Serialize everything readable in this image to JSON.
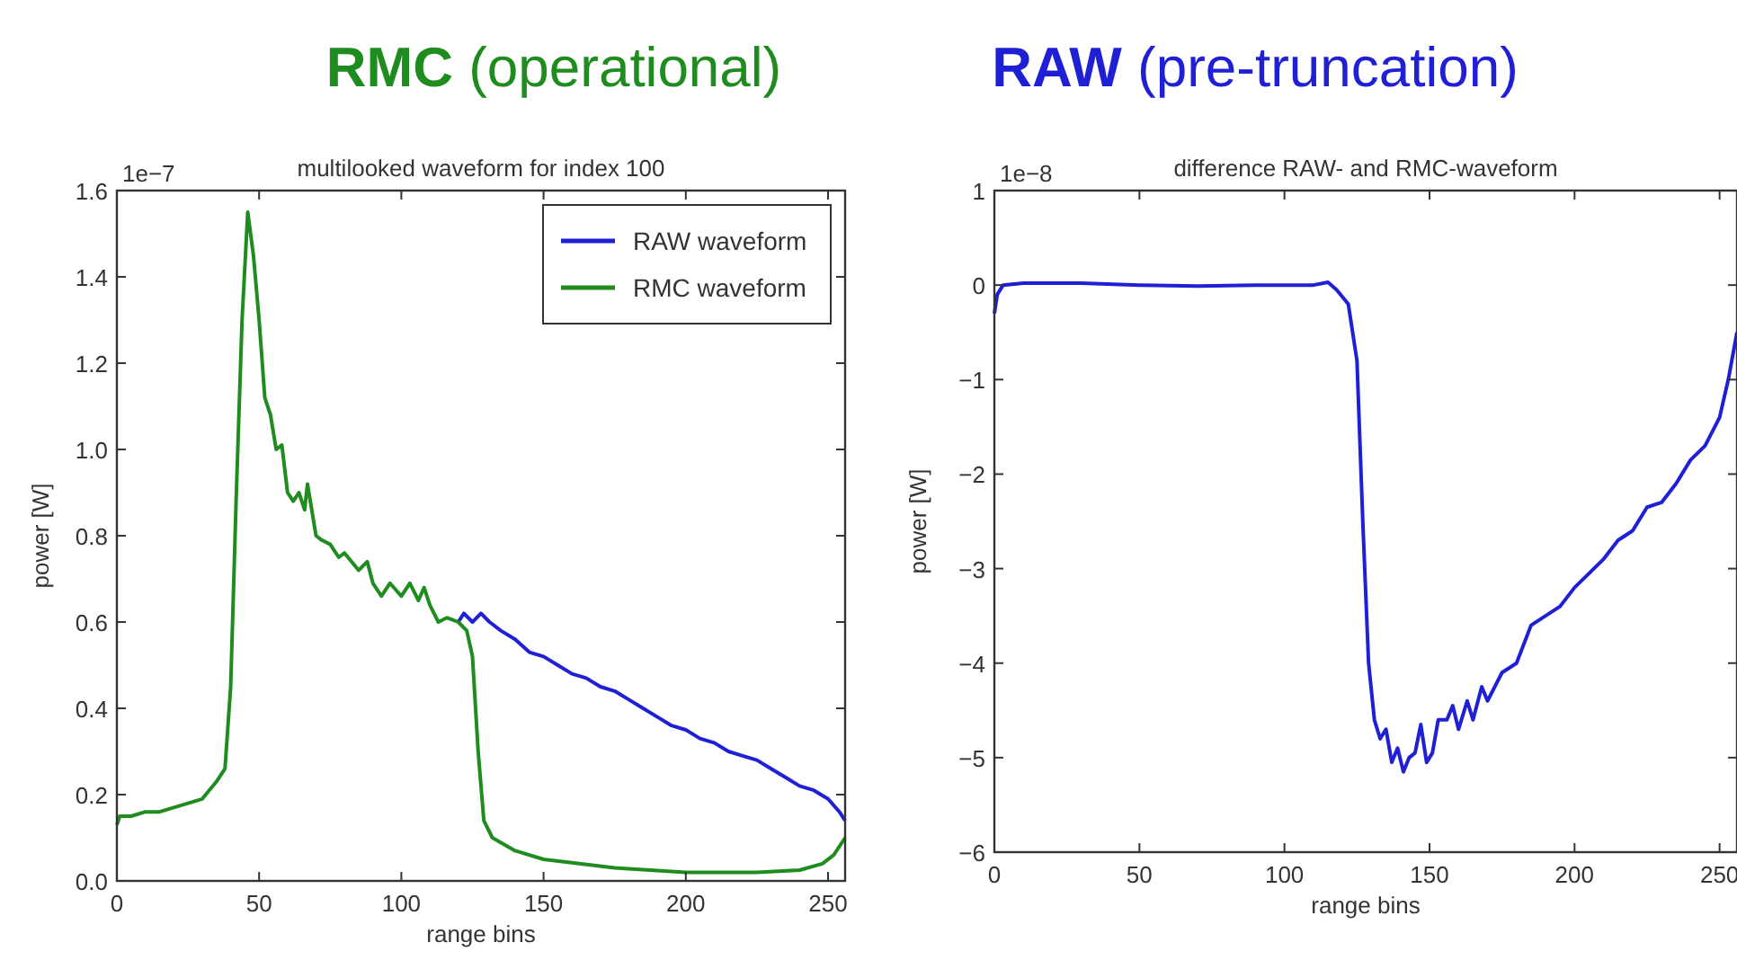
{
  "chart_data": [
    {
      "type": "line",
      "title": "multilooked waveform for index 100",
      "xlabel": "range bins",
      "ylabel": "power [W]",
      "annotations": [
        "RMC (operational)",
        "1e−7"
      ],
      "xlim": [
        0,
        256
      ],
      "xticks": [
        0,
        50,
        100,
        150,
        200,
        250
      ],
      "ylim": [
        0,
        1.6
      ],
      "yticks": [
        {
          "value": 0,
          "label": "0.0"
        },
        {
          "value": 0.2,
          "label": "0.2"
        },
        {
          "value": 0.4,
          "label": "0.4"
        },
        {
          "value": 0.6,
          "label": "0.6"
        },
        {
          "value": 0.8,
          "label": "0.8"
        },
        {
          "value": 1.0,
          "label": "1.0"
        },
        {
          "value": 1.2,
          "label": "1.2"
        },
        {
          "value": 1.4,
          "label": "1.4"
        },
        {
          "value": 1.6,
          "label": "1.6"
        }
      ],
      "legend": "top right",
      "series": [
        {
          "name": "RAW waveform",
          "color": "#1f1fd6",
          "x": [
            120,
            122,
            125,
            128,
            131,
            135,
            140,
            145,
            150,
            155,
            160,
            165,
            170,
            175,
            180,
            185,
            190,
            195,
            200,
            205,
            210,
            215,
            220,
            225,
            230,
            235,
            240,
            245,
            250,
            254,
            256
          ],
          "values": [
            0.6,
            0.62,
            0.6,
            0.62,
            0.6,
            0.58,
            0.56,
            0.53,
            0.52,
            0.5,
            0.48,
            0.47,
            0.45,
            0.44,
            0.42,
            0.4,
            0.38,
            0.36,
            0.35,
            0.33,
            0.32,
            0.3,
            0.29,
            0.28,
            0.26,
            0.24,
            0.22,
            0.21,
            0.19,
            0.16,
            0.14
          ]
        },
        {
          "name": "RMC waveform",
          "color": "#1e8c1e",
          "x": [
            0,
            1,
            5,
            10,
            15,
            20,
            25,
            30,
            35,
            38,
            40,
            42,
            44,
            46,
            48,
            50,
            52,
            54,
            56,
            58,
            60,
            62,
            64,
            66,
            67,
            70,
            72,
            75,
            78,
            80,
            85,
            88,
            90,
            93,
            96,
            100,
            103,
            106,
            108,
            110,
            113,
            116,
            120,
            123,
            125,
            127,
            129,
            132,
            140,
            150,
            175,
            200,
            225,
            240,
            248,
            252,
            256
          ],
          "values": [
            0.13,
            0.15,
            0.15,
            0.16,
            0.16,
            0.17,
            0.18,
            0.19,
            0.23,
            0.26,
            0.45,
            0.9,
            1.3,
            1.55,
            1.45,
            1.3,
            1.12,
            1.08,
            1.0,
            1.01,
            0.9,
            0.88,
            0.9,
            0.86,
            0.92,
            0.8,
            0.79,
            0.78,
            0.75,
            0.76,
            0.72,
            0.74,
            0.69,
            0.66,
            0.69,
            0.66,
            0.69,
            0.65,
            0.68,
            0.64,
            0.6,
            0.61,
            0.6,
            0.58,
            0.52,
            0.3,
            0.14,
            0.1,
            0.07,
            0.05,
            0.03,
            0.02,
            0.02,
            0.025,
            0.04,
            0.06,
            0.1
          ]
        }
      ]
    },
    {
      "type": "line",
      "title": "difference RAW- and RMC-waveform",
      "xlabel": "range bins",
      "ylabel": "power [W]",
      "annotations": [
        "RAW (pre-truncation)",
        "1e−8"
      ],
      "xlim": [
        0,
        256
      ],
      "xticks": [
        0,
        50,
        100,
        150,
        200,
        250
      ],
      "ylim": [
        -6,
        1
      ],
      "yticks": [
        {
          "value": -6,
          "label": "−6"
        },
        {
          "value": -5,
          "label": "−5"
        },
        {
          "value": -4,
          "label": "−4"
        },
        {
          "value": -3,
          "label": "−3"
        },
        {
          "value": -2,
          "label": "−2"
        },
        {
          "value": -1,
          "label": "−1"
        },
        0,
        1
      ],
      "series": [
        {
          "color": "#1f1fd6",
          "x": [
            0,
            1,
            3,
            10,
            30,
            50,
            70,
            90,
            110,
            115,
            118,
            122,
            125,
            127,
            129,
            131,
            133,
            135,
            137,
            139,
            141,
            143,
            145,
            147,
            149,
            151,
            153,
            156,
            158,
            160,
            163,
            165,
            168,
            170,
            175,
            180,
            185,
            190,
            195,
            200,
            205,
            210,
            215,
            220,
            225,
            230,
            235,
            240,
            245,
            250,
            253,
            256
          ],
          "values": [
            -0.3,
            -0.1,
            0,
            0.02,
            0.02,
            0,
            -0.01,
            0,
            0,
            0.03,
            -0.05,
            -0.2,
            -0.8,
            -2.5,
            -4,
            -4.6,
            -4.8,
            -4.7,
            -5.05,
            -4.9,
            -5.15,
            -5.0,
            -4.95,
            -4.65,
            -5.05,
            -4.95,
            -4.6,
            -4.6,
            -4.45,
            -4.7,
            -4.4,
            -4.6,
            -4.25,
            -4.4,
            -4.1,
            -4.0,
            -3.6,
            -3.5,
            -3.4,
            -3.2,
            -3.05,
            -2.9,
            -2.7,
            -2.6,
            -2.35,
            -2.3,
            -2.1,
            -1.85,
            -1.7,
            -1.4,
            -1.0,
            -0.5
          ]
        }
      ]
    }
  ]
}
